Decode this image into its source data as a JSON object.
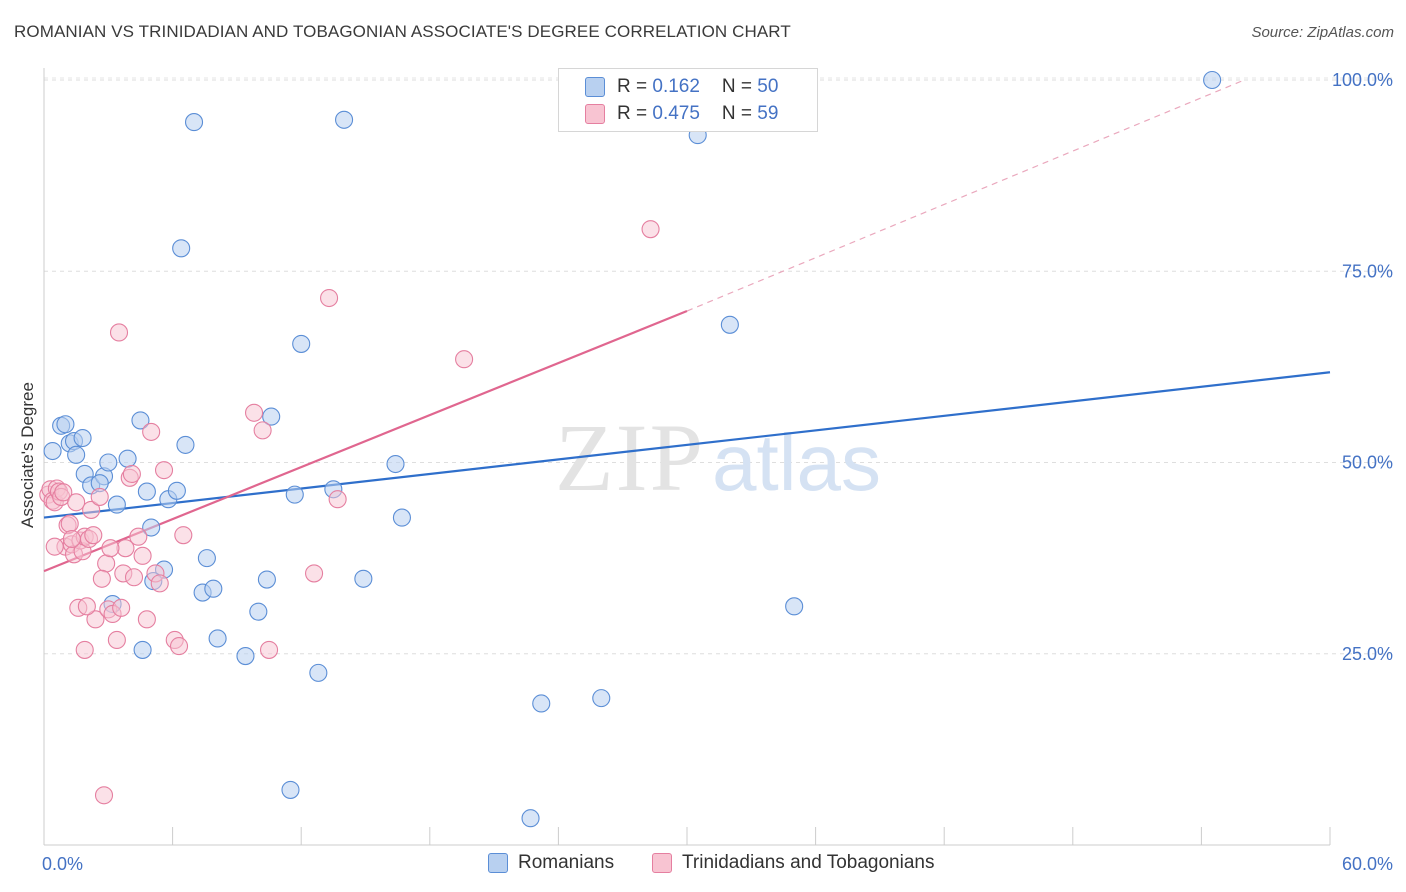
{
  "title": "ROMANIAN VS TRINIDADIAN AND TOBAGONIAN ASSOCIATE'S DEGREE CORRELATION CHART",
  "source": "Source: ZipAtlas.com",
  "watermark": {
    "zip": "ZIP",
    "atlas": "atlas"
  },
  "colors": {
    "romanian_fill": "#b8d0f0",
    "romanian_stroke": "#5b8ed6",
    "romanian_line": "#2f6fcb",
    "trinidad_fill": "#f8c4d2",
    "trinidad_stroke": "#e57fa0",
    "trinidad_line": "#e0668f",
    "accent_text": "#4472c4"
  },
  "legend": {
    "rows": [
      {
        "r_label": "R = ",
        "r_value": "0.162",
        "n_label": "N = ",
        "n_value": "50"
      },
      {
        "r_label": "R = ",
        "r_value": "0.475",
        "n_label": "N = ",
        "n_value": "59"
      }
    ]
  },
  "bottom_legend": {
    "series1": "Romanians",
    "series2": "Trinidadians and Tobagonians"
  },
  "chart_data": {
    "type": "scatter",
    "ylabel": "Associate's Degree",
    "xlim": [
      0,
      60
    ],
    "ylim": [
      0,
      100
    ],
    "x_tick_labels": [
      "0.0%",
      "60.0%"
    ],
    "y_ticks": [
      25,
      50,
      75,
      100
    ],
    "y_tick_labels": [
      "25.0%",
      "50.0%",
      "75.0%",
      "100.0%"
    ],
    "grid": true,
    "legend_position": "top-center",
    "series": [
      {
        "name": "Romanians",
        "R": 0.162,
        "N": 50,
        "trend": {
          "x": [
            0,
            60
          ],
          "y": [
            42.8,
            61.8
          ],
          "style": "solid"
        },
        "points": [
          [
            0.4,
            51.5
          ],
          [
            0.8,
            54.8
          ],
          [
            1.0,
            55.0
          ],
          [
            1.2,
            52.5
          ],
          [
            1.4,
            52.8
          ],
          [
            1.5,
            51.0
          ],
          [
            1.8,
            53.2
          ],
          [
            1.9,
            48.5
          ],
          [
            2.2,
            47.0
          ],
          [
            2.8,
            48.2
          ],
          [
            3.0,
            50.0
          ],
          [
            3.4,
            44.5
          ],
          [
            3.9,
            50.5
          ],
          [
            4.5,
            55.5
          ],
          [
            4.8,
            46.2
          ],
          [
            5.0,
            41.5
          ],
          [
            5.6,
            36.0
          ],
          [
            5.8,
            45.2
          ],
          [
            6.2,
            46.3
          ],
          [
            6.4,
            78.0
          ],
          [
            6.6,
            52.3
          ],
          [
            7.0,
            94.5
          ],
          [
            7.4,
            33.0
          ],
          [
            7.6,
            37.5
          ],
          [
            7.9,
            33.5
          ],
          [
            8.1,
            27.0
          ],
          [
            9.4,
            24.7
          ],
          [
            10.0,
            30.5
          ],
          [
            10.4,
            34.7
          ],
          [
            10.6,
            56.0
          ],
          [
            11.5,
            7.2
          ],
          [
            11.7,
            45.8
          ],
          [
            12.0,
            65.5
          ],
          [
            12.8,
            22.5
          ],
          [
            13.5,
            46.5
          ],
          [
            14.0,
            94.8
          ],
          [
            14.9,
            34.8
          ],
          [
            16.4,
            49.8
          ],
          [
            16.7,
            42.8
          ],
          [
            22.7,
            3.5
          ],
          [
            23.2,
            18.5
          ],
          [
            26.0,
            19.2
          ],
          [
            30.5,
            92.8
          ],
          [
            32.0,
            68.0
          ],
          [
            35.0,
            31.2
          ],
          [
            54.5,
            100.0
          ],
          [
            3.2,
            31.5
          ],
          [
            2.6,
            47.3
          ],
          [
            4.6,
            25.5
          ],
          [
            5.1,
            34.5
          ]
        ]
      },
      {
        "name": "Trinidadians and Tobagonians",
        "R": 0.475,
        "N": 59,
        "trend": {
          "x": [
            0,
            30
          ],
          "y": [
            35.8,
            69.8
          ],
          "style": "solid",
          "dashed_extension": {
            "x": [
              30,
              56
            ],
            "y": [
              69.8,
              100
            ]
          }
        },
        "points": [
          [
            0.2,
            45.8
          ],
          [
            0.3,
            46.5
          ],
          [
            0.4,
            45.0
          ],
          [
            0.5,
            44.8
          ],
          [
            0.6,
            46.6
          ],
          [
            0.7,
            46.2
          ],
          [
            0.8,
            45.5
          ],
          [
            0.9,
            46.1
          ],
          [
            1.0,
            39.0
          ],
          [
            1.1,
            41.8
          ],
          [
            1.2,
            42.0
          ],
          [
            1.3,
            39.3
          ],
          [
            1.4,
            38.0
          ],
          [
            1.5,
            44.8
          ],
          [
            1.7,
            39.8
          ],
          [
            1.8,
            38.4
          ],
          [
            1.9,
            40.3
          ],
          [
            2.1,
            40.0
          ],
          [
            2.2,
            43.8
          ],
          [
            2.4,
            29.5
          ],
          [
            2.6,
            45.5
          ],
          [
            2.8,
            6.5
          ],
          [
            2.9,
            36.8
          ],
          [
            3.0,
            30.8
          ],
          [
            3.2,
            30.2
          ],
          [
            3.4,
            26.8
          ],
          [
            3.5,
            67.0
          ],
          [
            3.7,
            35.5
          ],
          [
            3.8,
            38.8
          ],
          [
            4.0,
            48.0
          ],
          [
            4.2,
            35.0
          ],
          [
            4.4,
            40.3
          ],
          [
            4.6,
            37.8
          ],
          [
            4.8,
            29.5
          ],
          [
            5.0,
            54.0
          ],
          [
            5.2,
            35.5
          ],
          [
            5.4,
            34.2
          ],
          [
            5.6,
            49.0
          ],
          [
            6.1,
            26.8
          ],
          [
            6.3,
            26.0
          ],
          [
            6.5,
            40.5
          ],
          [
            9.8,
            56.5
          ],
          [
            10.2,
            54.2
          ],
          [
            10.5,
            25.5
          ],
          [
            12.6,
            35.5
          ],
          [
            13.3,
            71.5
          ],
          [
            13.7,
            45.2
          ],
          [
            19.6,
            63.5
          ],
          [
            28.3,
            80.5
          ],
          [
            1.6,
            31.0
          ],
          [
            2.0,
            31.2
          ],
          [
            2.7,
            34.8
          ],
          [
            3.1,
            38.8
          ],
          [
            4.1,
            48.5
          ],
          [
            1.9,
            25.5
          ],
          [
            0.5,
            39.0
          ],
          [
            1.3,
            40.0
          ],
          [
            2.3,
            40.5
          ],
          [
            3.6,
            31.0
          ]
        ]
      }
    ]
  }
}
